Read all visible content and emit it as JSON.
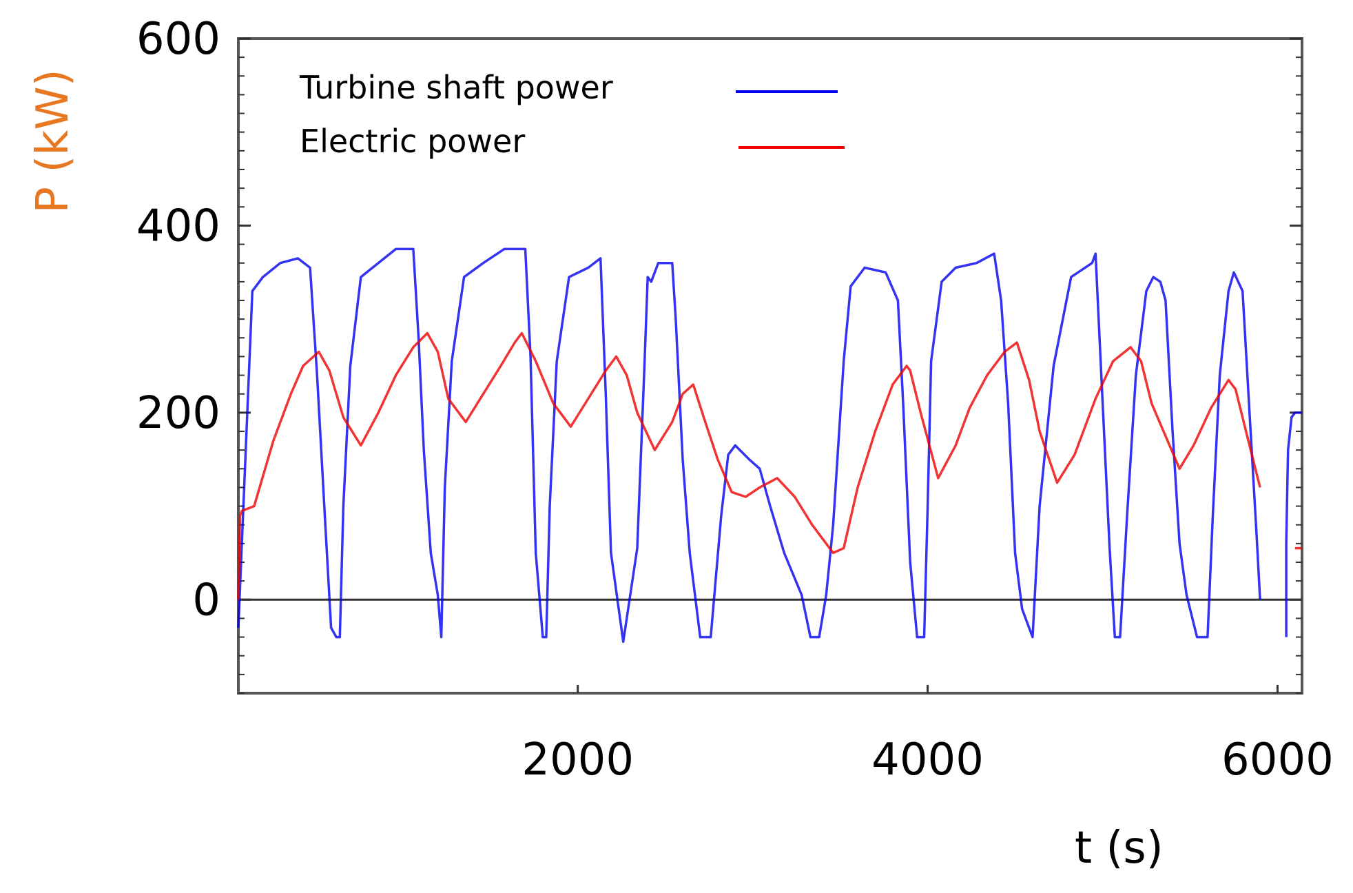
{
  "chart_data": {
    "type": "line",
    "xlabel": "t (s)",
    "ylabel": "P (kW)",
    "xlim": [
      60,
      6140
    ],
    "ylim": [
      -100,
      600
    ],
    "x_ticks": [
      2000,
      4000,
      6000
    ],
    "y_ticks": [
      0,
      200,
      400,
      600
    ],
    "zero_line": true,
    "grid": false,
    "legend_position": "top-left (inside)",
    "axis_label_color": "#E87722",
    "series": [
      {
        "name": "Turbine shaft power",
        "color": "#0000EE",
        "x": [
          60,
          140,
          200,
          300,
          400,
          470,
          510,
          560,
          590,
          620,
          640,
          660,
          700,
          760,
          860,
          960,
          1060,
          1090,
          1120,
          1160,
          1200,
          1220,
          1240,
          1280,
          1350,
          1460,
          1580,
          1700,
          1730,
          1760,
          1800,
          1820,
          1840,
          1880,
          1950,
          2060,
          2130,
          2160,
          2190,
          2260,
          2340,
          2380,
          2400,
          2420,
          2460,
          2540,
          2560,
          2600,
          2640,
          2700,
          2760,
          2820,
          2860,
          2900,
          2980,
          3040,
          3100,
          3180,
          3280,
          3330,
          3380,
          3420,
          3460,
          3520,
          3560,
          3640,
          3760,
          3830,
          3860,
          3900,
          3940,
          3980,
          4000,
          4020,
          4080,
          4160,
          4280,
          4380,
          4420,
          4460,
          4500,
          4540,
          4600,
          4640,
          4720,
          4820,
          4940,
          4960,
          4990,
          5040,
          5070,
          5100,
          5140,
          5190,
          5250,
          5290,
          5330,
          5360,
          5400,
          5440,
          5480,
          5540,
          5600,
          5630,
          5670,
          5720,
          5750,
          5800,
          5840,
          5880,
          5900
        ],
        "y": [
          -30,
          330,
          345,
          360,
          365,
          355,
          240,
          70,
          -30,
          -40,
          -40,
          100,
          250,
          345,
          360,
          375,
          375,
          280,
          160,
          50,
          5,
          -40,
          120,
          255,
          345,
          360,
          375,
          375,
          260,
          50,
          -40,
          -40,
          100,
          255,
          345,
          355,
          365,
          220,
          50,
          -45,
          55,
          245,
          345,
          340,
          360,
          360,
          300,
          150,
          50,
          -40,
          -40,
          90,
          155,
          165,
          150,
          140,
          100,
          50,
          5,
          -40,
          -40,
          5,
          80,
          255,
          335,
          355,
          350,
          320,
          210,
          40,
          -40,
          -40,
          100,
          255,
          340,
          355,
          360,
          370,
          320,
          210,
          50,
          -10,
          -40,
          100,
          250,
          345,
          360,
          370,
          250,
          55,
          -40,
          -40,
          90,
          240,
          330,
          345,
          340,
          320,
          180,
          60,
          5,
          -40,
          -40,
          90,
          240,
          330,
          350,
          330,
          200,
          70,
          0
        ],
        "segments": [
          {
            "x": [
              6050,
              6050,
              6060,
              6080,
              6100,
              6140
            ],
            "y": [
              -40,
              60,
              160,
              195,
              200,
              200
            ]
          }
        ]
      },
      {
        "name": "Electric power",
        "color": "#EE0000",
        "x": [
          60,
          70,
          80,
          150,
          260,
          360,
          430,
          520,
          580,
          660,
          760,
          860,
          960,
          1060,
          1140,
          1200,
          1260,
          1360,
          1460,
          1560,
          1640,
          1680,
          1760,
          1860,
          1960,
          2060,
          2160,
          2220,
          2280,
          2340,
          2440,
          2540,
          2600,
          2660,
          2720,
          2800,
          2880,
          2960,
          3040,
          3140,
          3240,
          3340,
          3460,
          3520,
          3600,
          3700,
          3800,
          3880,
          3900,
          3960,
          4060,
          4160,
          4240,
          4340,
          4440,
          4510,
          4580,
          4640,
          4740,
          4840,
          4960,
          5060,
          5160,
          5220,
          5280,
          5360,
          5440,
          5520,
          5620,
          5720,
          5760,
          5840,
          5900
        ],
        "y": [
          0,
          90,
          95,
          100,
          170,
          220,
          250,
          265,
          245,
          195,
          165,
          200,
          240,
          270,
          285,
          265,
          215,
          190,
          220,
          250,
          275,
          285,
          255,
          210,
          185,
          215,
          245,
          260,
          240,
          200,
          160,
          190,
          220,
          230,
          195,
          150,
          115,
          110,
          120,
          130,
          110,
          80,
          50,
          55,
          120,
          180,
          230,
          250,
          245,
          200,
          130,
          165,
          205,
          240,
          265,
          275,
          235,
          180,
          125,
          155,
          215,
          255,
          270,
          255,
          210,
          175,
          140,
          165,
          205,
          235,
          225,
          165,
          120
        ],
        "segments": [
          {
            "x": [
              6100,
              6140
            ],
            "y": [
              55,
              55
            ]
          }
        ]
      }
    ]
  }
}
